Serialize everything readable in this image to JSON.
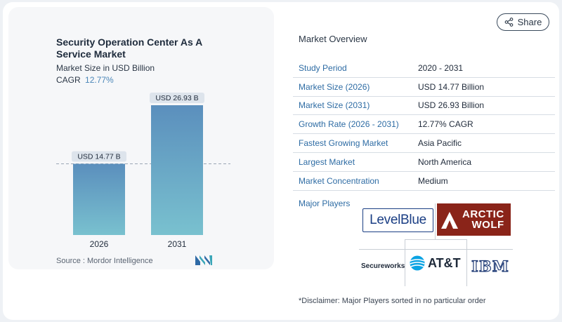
{
  "chart_data": {
    "type": "bar",
    "title": "Security Operation Center As A Service Market",
    "subtitle": "Market Size in USD Billion",
    "cagr_label": "CAGR",
    "cagr_value": "12.77%",
    "categories": [
      "2026",
      "2031"
    ],
    "values": [
      14.77,
      26.93
    ],
    "value_labels": [
      "USD 14.77 B",
      "USD 26.93 B"
    ],
    "xlabel": "",
    "ylabel": "",
    "ylim": [
      0,
      30
    ],
    "grid": false,
    "reference_line": 14.77,
    "colors": {
      "bar_top": "#5b8fbd",
      "bar_bottom": "#79c1cf"
    }
  },
  "source": "Source :  Mordor Intelligence",
  "share": {
    "label": "Share",
    "icon": "share-icon"
  },
  "overview": {
    "title": "Market Overview",
    "rows": [
      {
        "key": "Study Period",
        "value": "2020 - 2031"
      },
      {
        "key": "Market Size (2026)",
        "value": "USD 14.77 Billion"
      },
      {
        "key": "Market Size (2031)",
        "value": "USD 26.93 Billion"
      },
      {
        "key": "Growth Rate (2026 - 2031)",
        "value": "12.77% CAGR"
      },
      {
        "key": "Fastest Growing Market",
        "value": "Asia Pacific"
      },
      {
        "key": "Largest Market",
        "value": "North America"
      },
      {
        "key": "Market Concentration",
        "value": "Medium"
      }
    ]
  },
  "players": {
    "label": "Major Players",
    "logos": {
      "levelblue_a": "LevelBl",
      "levelblue_b": "ue",
      "arcticwolf_a": "ARCTIC",
      "arcticwolf_b": "WOLF",
      "secureworks": "Secureworks",
      "att": "AT&T",
      "ibm": "IBM"
    }
  },
  "disclaimer": "*Disclaimer: Major Players sorted in no particular order"
}
